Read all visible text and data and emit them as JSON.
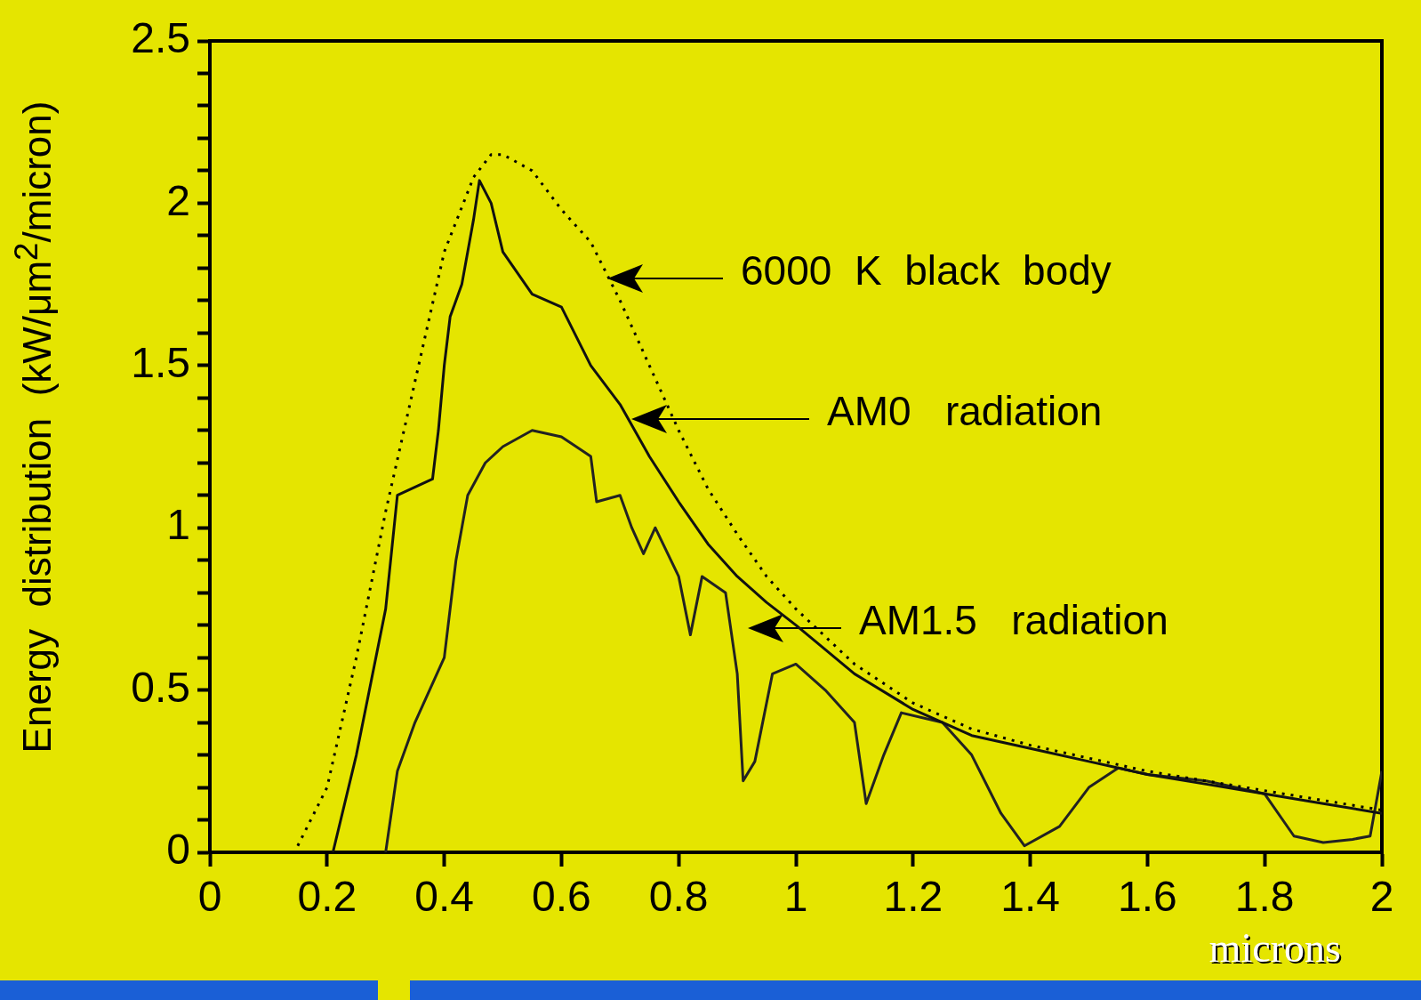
{
  "chart_data": {
    "type": "line",
    "xlabel": "microns",
    "ylabel": "Energy  distribution  (kW/μm$^{2}$/micron)",
    "xlim": [
      0,
      2
    ],
    "xticks": [
      0,
      0.2,
      0.4,
      0.6,
      0.8,
      1,
      1.2,
      1.4,
      1.6,
      1.8,
      2
    ],
    "ylim": [
      0,
      2.5
    ],
    "yticks": [
      0,
      {
        "value": 0.1,
        "label": null
      },
      {
        "value": 0.2,
        "label": null
      },
      {
        "value": 0.3,
        "label": null
      },
      {
        "value": 0.4,
        "label": null
      },
      0.5,
      {
        "value": 0.6,
        "label": null
      },
      {
        "value": 0.7,
        "label": null
      },
      {
        "value": 0.8,
        "label": null
      },
      {
        "value": 0.9,
        "label": null
      },
      1,
      {
        "value": 1.1,
        "label": null
      },
      {
        "value": 1.2,
        "label": null
      },
      {
        "value": 1.3,
        "label": null
      },
      {
        "value": 1.4,
        "label": null
      },
      1.5,
      {
        "value": 1.6,
        "label": null
      },
      {
        "value": 1.7,
        "label": null
      },
      {
        "value": 1.8,
        "label": null
      },
      {
        "value": 1.9,
        "label": null
      },
      2,
      {
        "value": 2.1,
        "label": null
      },
      {
        "value": 2.2,
        "label": null
      },
      {
        "value": 2.3,
        "label": null
      },
      {
        "value": 2.4,
        "label": null
      },
      2.5
    ],
    "legend": false,
    "marker": "none",
    "series": [
      {
        "color": "#000000",
        "line_style": "dotted",
        "x": [
          0.15,
          0.2,
          0.25,
          0.3,
          0.35,
          0.4,
          0.45,
          0.48,
          0.5,
          0.55,
          0.6,
          0.65,
          0.7,
          0.75,
          0.8,
          0.85,
          0.9,
          0.95,
          1.0,
          1.1,
          1.2,
          1.3,
          1.4,
          1.5,
          1.6,
          1.7,
          1.8,
          1.9,
          2.0
        ],
        "values": [
          0.02,
          0.2,
          0.6,
          1.05,
          1.45,
          1.85,
          2.08,
          2.15,
          2.15,
          2.1,
          1.98,
          1.88,
          1.7,
          1.5,
          1.3,
          1.12,
          0.98,
          0.85,
          0.75,
          0.58,
          0.46,
          0.38,
          0.33,
          0.29,
          0.25,
          0.22,
          0.19,
          0.16,
          0.13
        ]
      },
      {
        "color": "#111111",
        "line_style": "solid",
        "x": [
          0.21,
          0.25,
          0.3,
          0.32,
          0.38,
          0.39,
          0.4,
          0.41,
          0.43,
          0.45,
          0.46,
          0.48,
          0.5,
          0.55,
          0.6,
          0.65,
          0.7,
          0.75,
          0.8,
          0.85,
          0.9,
          0.95,
          1.0,
          1.1,
          1.2,
          1.3,
          1.4,
          1.5,
          1.6,
          1.7,
          1.8,
          1.9,
          2.0
        ],
        "values": [
          0,
          0.3,
          0.75,
          1.1,
          1.15,
          1.3,
          1.5,
          1.65,
          1.75,
          1.95,
          2.07,
          2.0,
          1.85,
          1.72,
          1.68,
          1.5,
          1.38,
          1.22,
          1.08,
          0.95,
          0.85,
          0.77,
          0.7,
          0.55,
          0.44,
          0.36,
          0.32,
          0.28,
          0.24,
          0.21,
          0.18,
          0.15,
          0.12
        ]
      },
      {
        "color": "#222222",
        "line_style": "solid",
        "x": [
          0.3,
          0.32,
          0.35,
          0.4,
          0.42,
          0.44,
          0.47,
          0.5,
          0.55,
          0.6,
          0.65,
          0.66,
          0.7,
          0.72,
          0.74,
          0.76,
          0.8,
          0.82,
          0.84,
          0.88,
          0.9,
          0.91,
          0.93,
          0.96,
          1.0,
          1.05,
          1.1,
          1.12,
          1.15,
          1.18,
          1.25,
          1.3,
          1.35,
          1.39,
          1.45,
          1.5,
          1.55,
          1.6,
          1.7,
          1.8,
          1.85,
          1.9,
          1.95,
          1.98,
          2.0
        ],
        "values": [
          0,
          0.25,
          0.4,
          0.6,
          0.9,
          1.1,
          1.2,
          1.25,
          1.3,
          1.28,
          1.22,
          1.08,
          1.1,
          1.0,
          0.92,
          1.0,
          0.85,
          0.67,
          0.85,
          0.8,
          0.55,
          0.22,
          0.28,
          0.55,
          0.58,
          0.5,
          0.4,
          0.15,
          0.3,
          0.43,
          0.4,
          0.3,
          0.12,
          0.02,
          0.08,
          0.2,
          0.26,
          0.24,
          0.22,
          0.18,
          0.05,
          0.03,
          0.04,
          0.05,
          0.25
        ]
      }
    ],
    "annotations": [
      "6000  K  black  body",
      "AM0   radiation",
      "AM1.5   radiation"
    ]
  }
}
